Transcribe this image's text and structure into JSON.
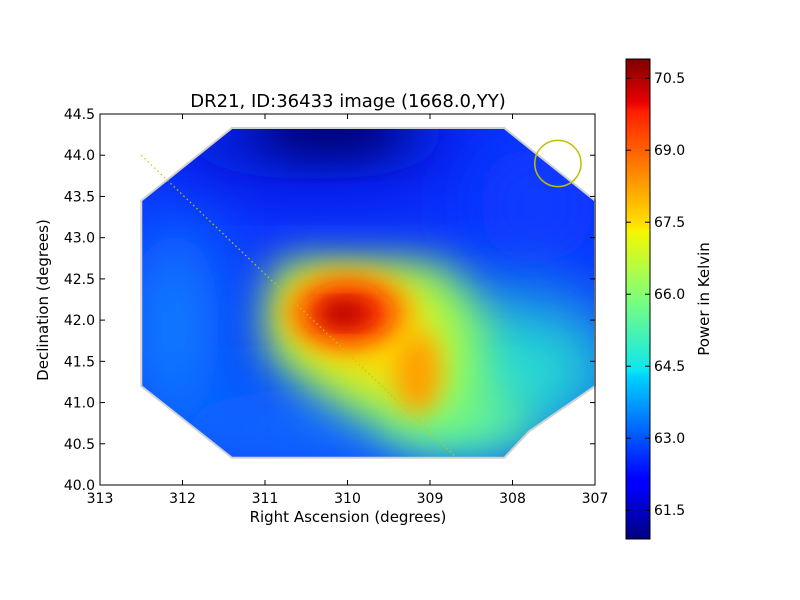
{
  "chart_data": {
    "type": "heatmap",
    "title": "DR21, ID:36433 image (1668.0,YY)",
    "xlabel": "Right Ascension (degrees)",
    "ylabel": "Declination (degrees)",
    "xlim": [
      313,
      307
    ],
    "ylim": [
      40.0,
      44.5
    ],
    "x_ticks": [
      "313",
      "312",
      "311",
      "310",
      "309",
      "308",
      "307"
    ],
    "y_ticks": [
      "40.0",
      "40.5",
      "41.0",
      "41.5",
      "42.0",
      "42.5",
      "43.0",
      "43.5",
      "44.0",
      "44.5"
    ],
    "colorbar": {
      "label": "Power in Kelvin",
      "colormap": "jet",
      "range": [
        60.9,
        70.9
      ],
      "ticks": [
        "61.5",
        "63.0",
        "64.5",
        "66.0",
        "67.5",
        "69.0",
        "70.5"
      ]
    },
    "field_outline_ra_dec": [
      [
        311.4,
        44.33
      ],
      [
        308.1,
        44.33
      ],
      [
        307.0,
        43.45
      ],
      [
        307.0,
        41.2
      ],
      [
        307.8,
        40.65
      ],
      [
        308.1,
        40.33
      ],
      [
        311.4,
        40.33
      ],
      [
        312.5,
        41.2
      ],
      [
        312.5,
        43.45
      ]
    ],
    "features": [
      {
        "name": "peak",
        "ra": 310.0,
        "dec": 42.05,
        "value": 70.9
      },
      {
        "name": "secondary lobe",
        "ra": 309.15,
        "dec": 41.2,
        "value": 68.3
      },
      {
        "name": "minimum",
        "ra": 310.3,
        "dec": 44.2,
        "value": 61.0
      }
    ],
    "dotted_line_ra_dec": [
      [
        312.5,
        44.0
      ],
      [
        308.7,
        40.35
      ]
    ],
    "beam_circle": {
      "ra": 307.45,
      "dec": 43.9,
      "radius_deg": 0.35,
      "color": "#bfbf00"
    }
  }
}
